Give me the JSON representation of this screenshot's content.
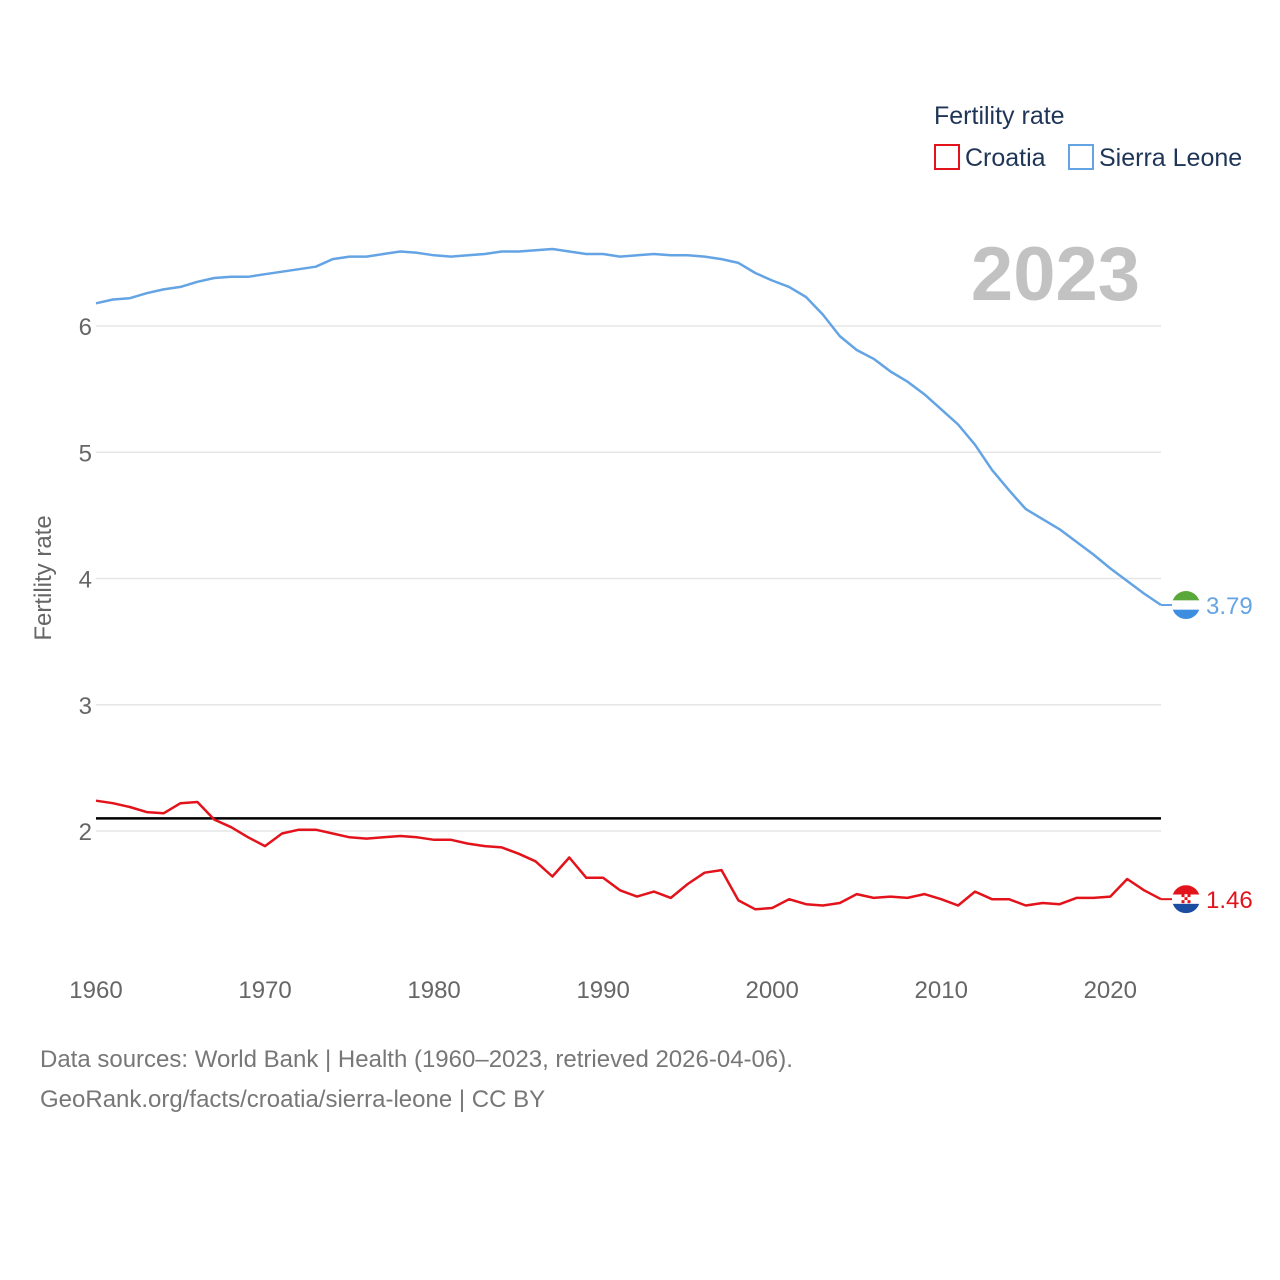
{
  "chart_data": {
    "type": "line",
    "title": "",
    "legend_title": "Fertility rate",
    "ylabel": "Fertility rate",
    "xlabel": "",
    "xlim": [
      1960,
      2023
    ],
    "ylim": [
      1.0,
      6.5
    ],
    "xticks": [
      1960,
      1970,
      1980,
      1990,
      2000,
      2010,
      2020
    ],
    "yticks": [
      2,
      3,
      4,
      5,
      6
    ],
    "year_label": "2023",
    "reference_line": {
      "value": 2.1,
      "color": "#000000"
    },
    "x": [
      1960,
      1961,
      1962,
      1963,
      1964,
      1965,
      1966,
      1967,
      1968,
      1969,
      1970,
      1971,
      1972,
      1973,
      1974,
      1975,
      1976,
      1977,
      1978,
      1979,
      1980,
      1981,
      1982,
      1983,
      1984,
      1985,
      1986,
      1987,
      1988,
      1989,
      1990,
      1991,
      1992,
      1993,
      1994,
      1995,
      1996,
      1997,
      1998,
      1999,
      2000,
      2001,
      2002,
      2003,
      2004,
      2005,
      2006,
      2007,
      2008,
      2009,
      2010,
      2011,
      2012,
      2013,
      2014,
      2015,
      2016,
      2017,
      2018,
      2019,
      2020,
      2021,
      2022,
      2023
    ],
    "series": [
      {
        "name": "Croatia",
        "color": "#e3131b",
        "end_label": "1.46",
        "flag": "croatia-flag",
        "values": [
          2.24,
          2.22,
          2.19,
          2.15,
          2.14,
          2.22,
          2.23,
          2.09,
          2.03,
          1.95,
          1.88,
          1.98,
          2.01,
          2.01,
          1.98,
          1.95,
          1.94,
          1.95,
          1.96,
          1.95,
          1.93,
          1.93,
          1.9,
          1.88,
          1.87,
          1.82,
          1.76,
          1.64,
          1.79,
          1.63,
          1.63,
          1.53,
          1.48,
          1.52,
          1.47,
          1.58,
          1.67,
          1.69,
          1.45,
          1.38,
          1.39,
          1.46,
          1.42,
          1.41,
          1.43,
          1.5,
          1.47,
          1.48,
          1.47,
          1.5,
          1.46,
          1.41,
          1.52,
          1.46,
          1.46,
          1.41,
          1.43,
          1.42,
          1.47,
          1.47,
          1.48,
          1.62,
          1.53,
          1.46
        ]
      },
      {
        "name": "Sierra Leone",
        "color": "#64a4e4",
        "end_label": "3.79",
        "flag": "sierra-leone-flag",
        "values": [
          6.18,
          6.21,
          6.22,
          6.26,
          6.29,
          6.31,
          6.35,
          6.38,
          6.39,
          6.39,
          6.41,
          6.43,
          6.45,
          6.47,
          6.53,
          6.55,
          6.55,
          6.57,
          6.59,
          6.58,
          6.56,
          6.55,
          6.56,
          6.57,
          6.59,
          6.59,
          6.6,
          6.61,
          6.59,
          6.57,
          6.57,
          6.55,
          6.56,
          6.57,
          6.56,
          6.56,
          6.55,
          6.53,
          6.5,
          6.42,
          6.36,
          6.31,
          6.23,
          6.09,
          5.92,
          5.81,
          5.74,
          5.64,
          5.56,
          5.46,
          5.34,
          5.22,
          5.06,
          4.86,
          4.7,
          4.55,
          4.47,
          4.39,
          4.29,
          4.19,
          4.08,
          3.98,
          3.88,
          3.79
        ]
      }
    ]
  },
  "footer": {
    "line1": "Data sources: World Bank | Health (1960–2023, retrieved 2026-04-06).",
    "line2": "GeoRank.org/facts/croatia/sierra-leone | CC BY"
  }
}
